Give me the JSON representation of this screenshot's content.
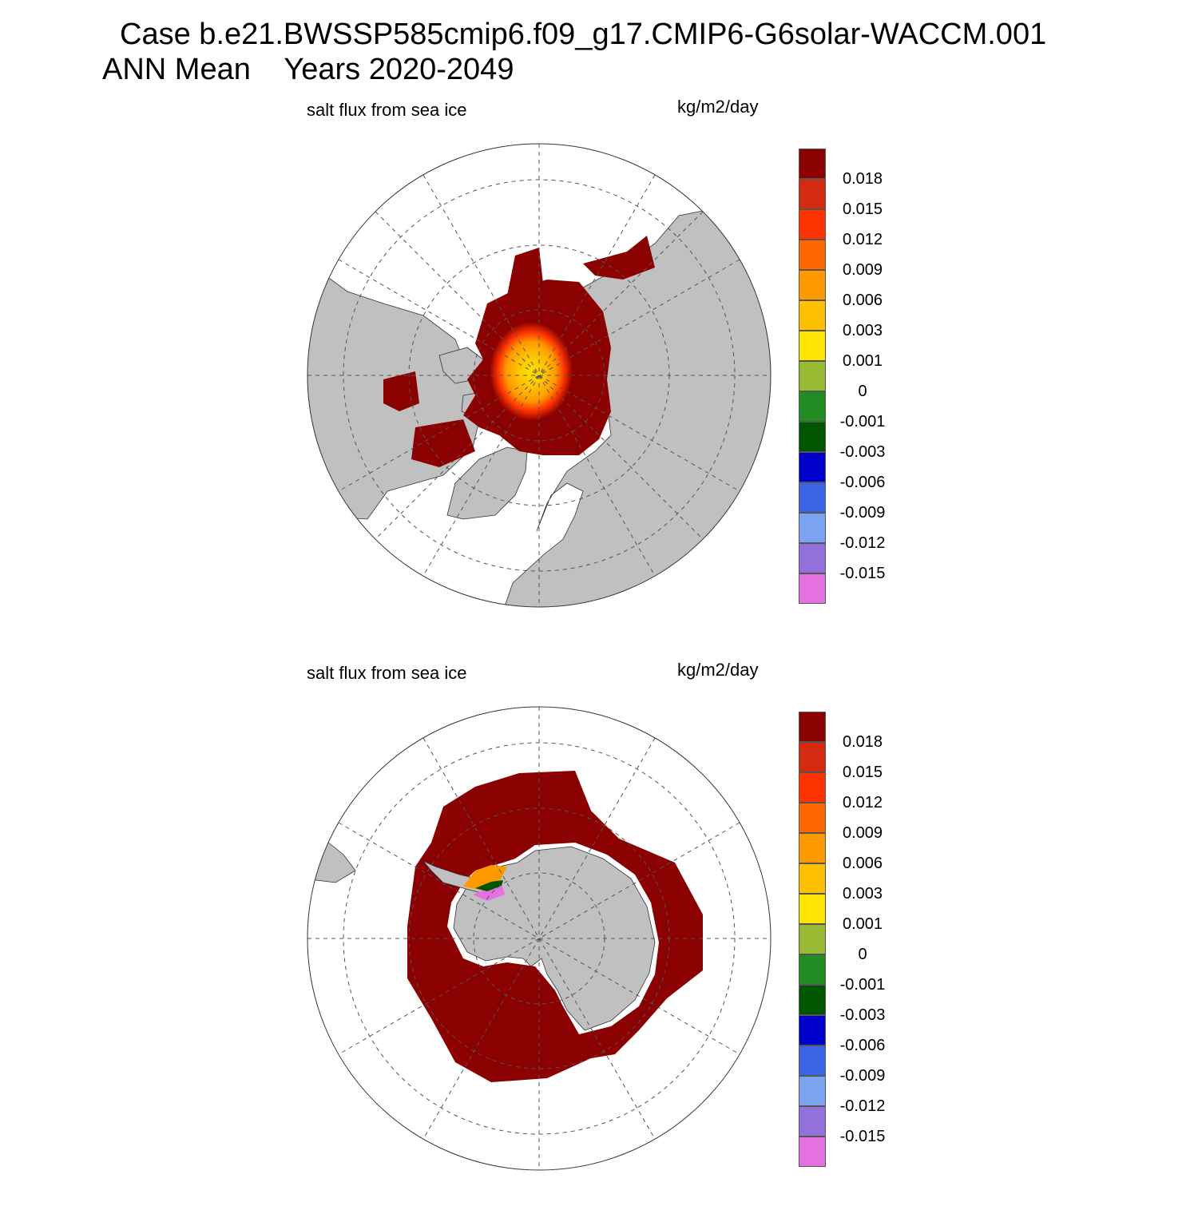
{
  "header": {
    "case_line": "Case b.e21.BWSSP585cmip6.f09_g17.CMIP6-G6solar-WACCM.001",
    "period_line": "ANN Mean    Years 2020-2049"
  },
  "panels": [
    {
      "id": "north",
      "variable_label": "salt flux from sea ice",
      "units_label": "kg/m2/day"
    },
    {
      "id": "south",
      "variable_label": "salt flux from sea ice",
      "units_label": "kg/m2/day"
    }
  ],
  "colors": {
    "land": "#c0c0c0",
    "saturated": "#8b0000",
    "grid": "#555555"
  },
  "colorbar": {
    "levels": [
      "0.018",
      "0.015",
      "0.012",
      "0.009",
      "0.006",
      "0.003",
      "0.001",
      "0",
      "-0.001",
      "-0.003",
      "-0.006",
      "-0.009",
      "-0.012",
      "-0.015"
    ],
    "colors": [
      "#8b0000",
      "#d42a12",
      "#ff3300",
      "#ff6600",
      "#ff9900",
      "#ffc000",
      "#ffe400",
      "#99bb33",
      "#228b22",
      "#005500",
      "#0000cc",
      "#3c64e6",
      "#7ba3f0",
      "#9370db",
      "#e570e0"
    ]
  }
}
